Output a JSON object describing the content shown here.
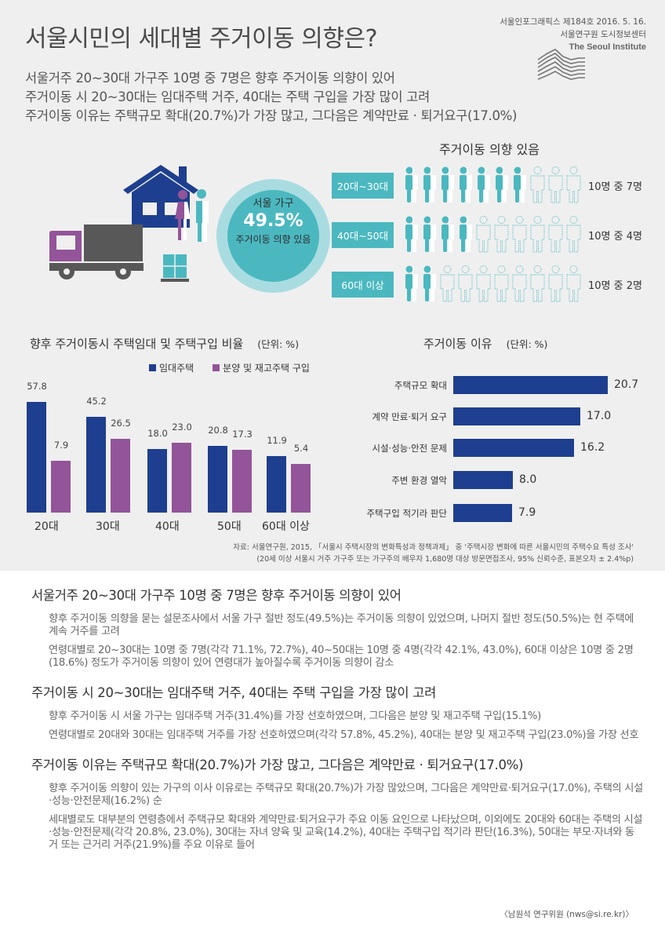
{
  "header": {
    "title": "서울시민의 세대별 주거이동 의향은?",
    "issue": "서울인포그래픽스 제184호 2016. 5. 16.",
    "org_ko": "서울연구원 도시정보센터",
    "org_en": "The Seoul Institute"
  },
  "summary": [
    "서울거주 20~30대 가구주 10명 중 7명은 향후 주거이동 의향이 있어",
    "주거이동 시 20~30대는 임대주택 거주, 40대는 주택 구입을 가장 많이 고려",
    "주거이동 이유는 주택규모 확대(20.7%)가 가장 많고, 그다음은 계약만료 · 퇴거요구(17.0%)"
  ],
  "circle": {
    "line1": "서울 가구",
    "percent": "49.5%",
    "line3": "주거이동 의향 있음"
  },
  "pictogram": {
    "title": "주거이동 의향 있음",
    "rows": [
      {
        "label": "20대~30대",
        "filled": 7,
        "total": 10,
        "text": "10명 중 7명"
      },
      {
        "label": "40대~50대",
        "filled": 4,
        "total": 10,
        "text": "10명 중 4명"
      },
      {
        "label": "60대 이상",
        "filled": 2,
        "total": 10,
        "text": "10명 중 2명"
      }
    ]
  },
  "colors": {
    "teal": "#4bb8c0",
    "teal_light": "#a9dce0",
    "navy": "#1e3f8f",
    "purple": "#935499",
    "truck_gray": "#585858",
    "panel_bg": "#efefef"
  },
  "chart_data": [
    {
      "type": "bar",
      "title": "향후 주거이동시 주택임대 및 주택구입 비율",
      "unit": "(단위: %)",
      "categories": [
        "20대",
        "30대",
        "40대",
        "50대",
        "60대 이상"
      ],
      "series": [
        {
          "name": "임대주택",
          "color": "#1e3f8f",
          "values": [
            57.8,
            45.2,
            18.0,
            20.8,
            11.9
          ],
          "labels": [
            "57.8",
            "45.2",
            "18.0",
            "20.8",
            "11.9"
          ]
        },
        {
          "name": "분양 및 재고주택 구입",
          "color": "#935499",
          "values": [
            7.9,
            26.5,
            23.0,
            17.3,
            5.4
          ],
          "labels": [
            "7.9",
            "26.5",
            "23.0",
            "17.3",
            "5.4"
          ]
        }
      ],
      "xlabel": "",
      "ylabel": "",
      "grid": false,
      "legend_position": "top-right"
    },
    {
      "type": "bar",
      "orientation": "horizontal",
      "title": "주거이동 이유",
      "unit": "(단위: %)",
      "categories": [
        "주택규모 확대",
        "계약 만료·퇴거 요구",
        "시설·성능·안전 문제",
        "주변 환경 열악",
        "주택구입 적기라 판단"
      ],
      "values": [
        20.7,
        17.0,
        16.2,
        8.0,
        7.9
      ],
      "labels": [
        "20.7",
        "17.0",
        "16.2",
        "8.0",
        "7.9"
      ],
      "color": "#1e3f8f",
      "grid": false
    }
  ],
  "source": {
    "line1": "자료: 서울연구원, 2015, 「서울시 주택시장의 변화특성과 정책과제」 중 '주택시장 변화에 따른 서울시민의 주택수요 특성 조사'",
    "line2": "(20세 이상 서울시 거주 가구주 또는 가구주의 배우자 1,680명 대상 방문면접조사, 95% 신뢰수준, 표본오차 ± 2.4%p)"
  },
  "article": {
    "sections": [
      {
        "heading": "서울거주 20~30대 가구주 10명 중 7명은 향후 주거이동 의향이 있어",
        "paragraphs": [
          "향후 주거이동 의향을 묻는 설문조사에서 서울 가구 절반 정도(49.5%)는 주거이동 의향이 있었으며, 나머지 절반 정도(50.5%)는 현 주택에 계속 거주를 고려",
          "연령대별로 20~30대는 10명 중 7명(각각 71.1%, 72.7%), 40~50대는 10명 중 4명(각각 42.1%, 43.0%), 60대 이상은 10명 중 2명(18.6%) 정도가 주거이동 의향이 있어 연령대가 높아질수록 주거이동 의향이 감소"
        ]
      },
      {
        "heading": "주거이동 시 20~30대는 임대주택 거주, 40대는 주택 구입을 가장 많이 고려",
        "paragraphs": [
          "향후 주거이동 시 서울 가구는 임대주택 거주(31.4%)를 가장 선호하였으며, 그다음은 분양 및 재고주택 구입(15.1%)",
          "연령대별로 20대와 30대는 임대주택 거주를 가장 선호하였으며(각각 57.8%, 45.2%), 40대는 분양 및 재고주택 구입(23.0%)을 가장 선호"
        ]
      },
      {
        "heading": "주거이동 이유는 주택규모 확대(20.7%)가 가장 많고, 그다음은 계약만료 · 퇴거요구(17.0%)",
        "paragraphs": [
          "향후 주거이동 의향이 있는 가구의 이사 이유로는 주택규모 확대(20.7%)가 가장 많았으며, 그다음은 계약만료·퇴거요구(17.0%), 주택의 시설·성능·안전문제(16.2%) 순",
          "세대별로도 대부분의 연령층에서 주택규모 확대와 계약만료·퇴거요구가 주요 이동 요인으로 나타났으며, 이외에도 20대와 60대는 주택의 시설·성능·안전문제(각각 20.8%, 23.0%), 30대는 자녀 양육 및 교육(14.2%), 40대는 주택구입 적기라 판단(16.3%), 50대는 부모·자녀와 동거 또는 근거리 거주(21.9%)를 주요 이유로 들어"
        ]
      }
    ],
    "author": "〈남원석 연구위원 (nws@si.re.kr)〉"
  }
}
